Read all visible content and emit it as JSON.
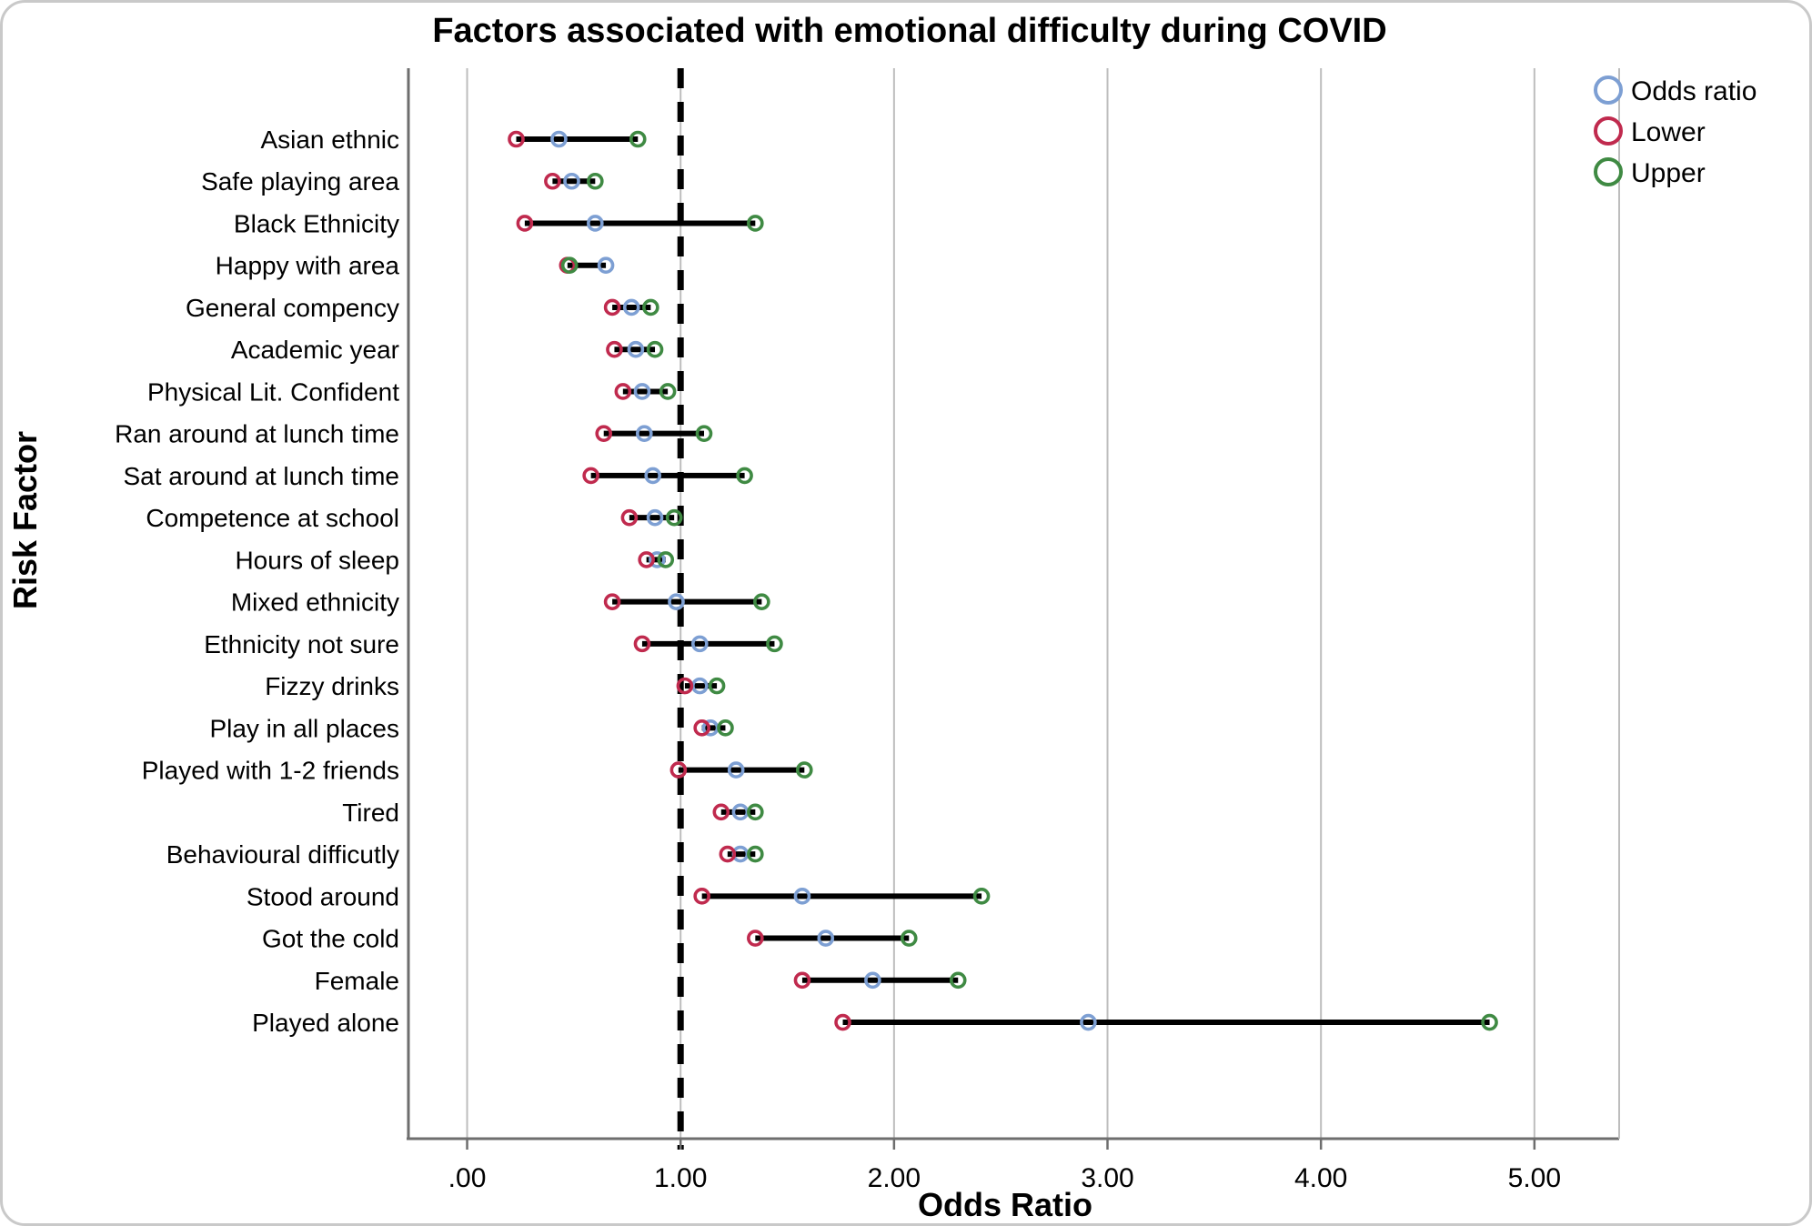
{
  "title": "Factors associated with emotional difficulty during COVID",
  "chart_data": {
    "type": "scatter",
    "subtype": "forest-dumbbell",
    "title": "Factors associated with emotional difficulty during COVID",
    "xlabel": "Odds Ratio",
    "ylabel": "Risk Factor",
    "xlim": [
      -0.275,
      5.397
    ],
    "xticks": [
      0,
      1,
      2,
      3,
      4,
      5
    ],
    "xtick_labels": [
      ".00",
      "1.00",
      "2.00",
      "3.00",
      "4.00",
      "5.00"
    ],
    "reference_line": 1.0,
    "grid": true,
    "legend_position": "top-right",
    "legend": [
      {
        "label": "Odds ratio",
        "color": "#7d9fd3"
      },
      {
        "label": "Lower",
        "color": "#c02a4e"
      },
      {
        "label": "Upper",
        "color": "#3f8a43"
      }
    ],
    "rows": [
      {
        "factor": "Asian ethnic",
        "or": 0.43,
        "lower": 0.23,
        "upper": 0.8
      },
      {
        "factor": "Safe playing area",
        "or": 0.49,
        "lower": 0.4,
        "upper": 0.6
      },
      {
        "factor": "Black Ethnicity",
        "or": 0.6,
        "lower": 0.27,
        "upper": 1.35
      },
      {
        "factor": "Happy with area",
        "or": 0.65,
        "lower": 0.47,
        "upper": 0.48
      },
      {
        "factor": "General compency",
        "or": 0.77,
        "lower": 0.68,
        "upper": 0.86
      },
      {
        "factor": "Academic year",
        "or": 0.79,
        "lower": 0.69,
        "upper": 0.88
      },
      {
        "factor": "Physical Lit. Confident",
        "or": 0.82,
        "lower": 0.73,
        "upper": 0.94
      },
      {
        "factor": "Ran around at lunch time",
        "or": 0.83,
        "lower": 0.64,
        "upper": 1.11
      },
      {
        "factor": "Sat around at lunch time",
        "or": 0.87,
        "lower": 0.58,
        "upper": 1.3
      },
      {
        "factor": "Competence at school",
        "or": 0.88,
        "lower": 0.76,
        "upper": 0.97
      },
      {
        "factor": "Hours of sleep",
        "or": 0.89,
        "lower": 0.84,
        "upper": 0.93
      },
      {
        "factor": "Mixed ethnicity",
        "or": 0.98,
        "lower": 0.68,
        "upper": 1.38
      },
      {
        "factor": "Ethnicity not sure",
        "or": 1.09,
        "lower": 0.82,
        "upper": 1.44
      },
      {
        "factor": "Fizzy drinks",
        "or": 1.09,
        "lower": 1.02,
        "upper": 1.17
      },
      {
        "factor": "Play in all places",
        "or": 1.14,
        "lower": 1.1,
        "upper": 1.21
      },
      {
        "factor": "Played with 1-2 friends",
        "or": 1.26,
        "lower": 0.99,
        "upper": 1.58
      },
      {
        "factor": "Tired",
        "or": 1.28,
        "lower": 1.19,
        "upper": 1.35
      },
      {
        "factor": "Behavioural difficutly",
        "or": 1.28,
        "lower": 1.22,
        "upper": 1.35
      },
      {
        "factor": "Stood around",
        "or": 1.57,
        "lower": 1.1,
        "upper": 2.41
      },
      {
        "factor": "Got the cold",
        "or": 1.68,
        "lower": 1.35,
        "upper": 2.07
      },
      {
        "factor": "Female",
        "or": 1.9,
        "lower": 1.57,
        "upper": 2.3
      },
      {
        "factor": "Played alone",
        "or": 2.91,
        "lower": 1.76,
        "upper": 4.79
      }
    ]
  },
  "colors": {
    "odds_ratio_marker": "#7d9fd3",
    "lower_marker": "#c02a4e",
    "upper_marker": "#3f8a43",
    "ci_line": "#000000",
    "reference_line": "#000000",
    "gridline": "#bdbdbd",
    "axis_line": "#6e6e6e",
    "text": "#000000",
    "frame_border": "#c9c9c9"
  }
}
